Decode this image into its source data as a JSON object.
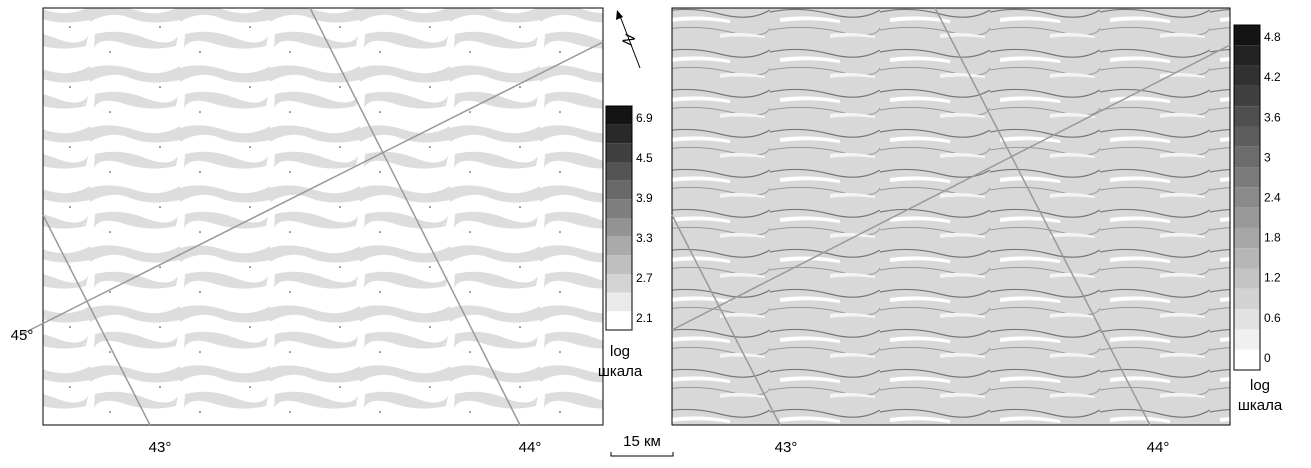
{
  "left_panel": {
    "lat_label": "45°",
    "lon_labels": [
      "43°",
      "44°"
    ],
    "colorbar": {
      "labels": [
        "6.9",
        "4.5",
        "3.9",
        "3.3",
        "2.7",
        "2.1"
      ],
      "title": [
        "log",
        "шкала"
      ]
    }
  },
  "right_panel": {
    "lon_labels": [
      "43°",
      "44°"
    ],
    "colorbar": {
      "labels": [
        "4.8",
        "4.2",
        "3.6",
        "3",
        "2.4",
        "1.8",
        "1.2",
        "0.6",
        "0"
      ],
      "title": [
        "log",
        "шкала"
      ]
    }
  },
  "scale_bar": "15 км",
  "north": "N"
}
